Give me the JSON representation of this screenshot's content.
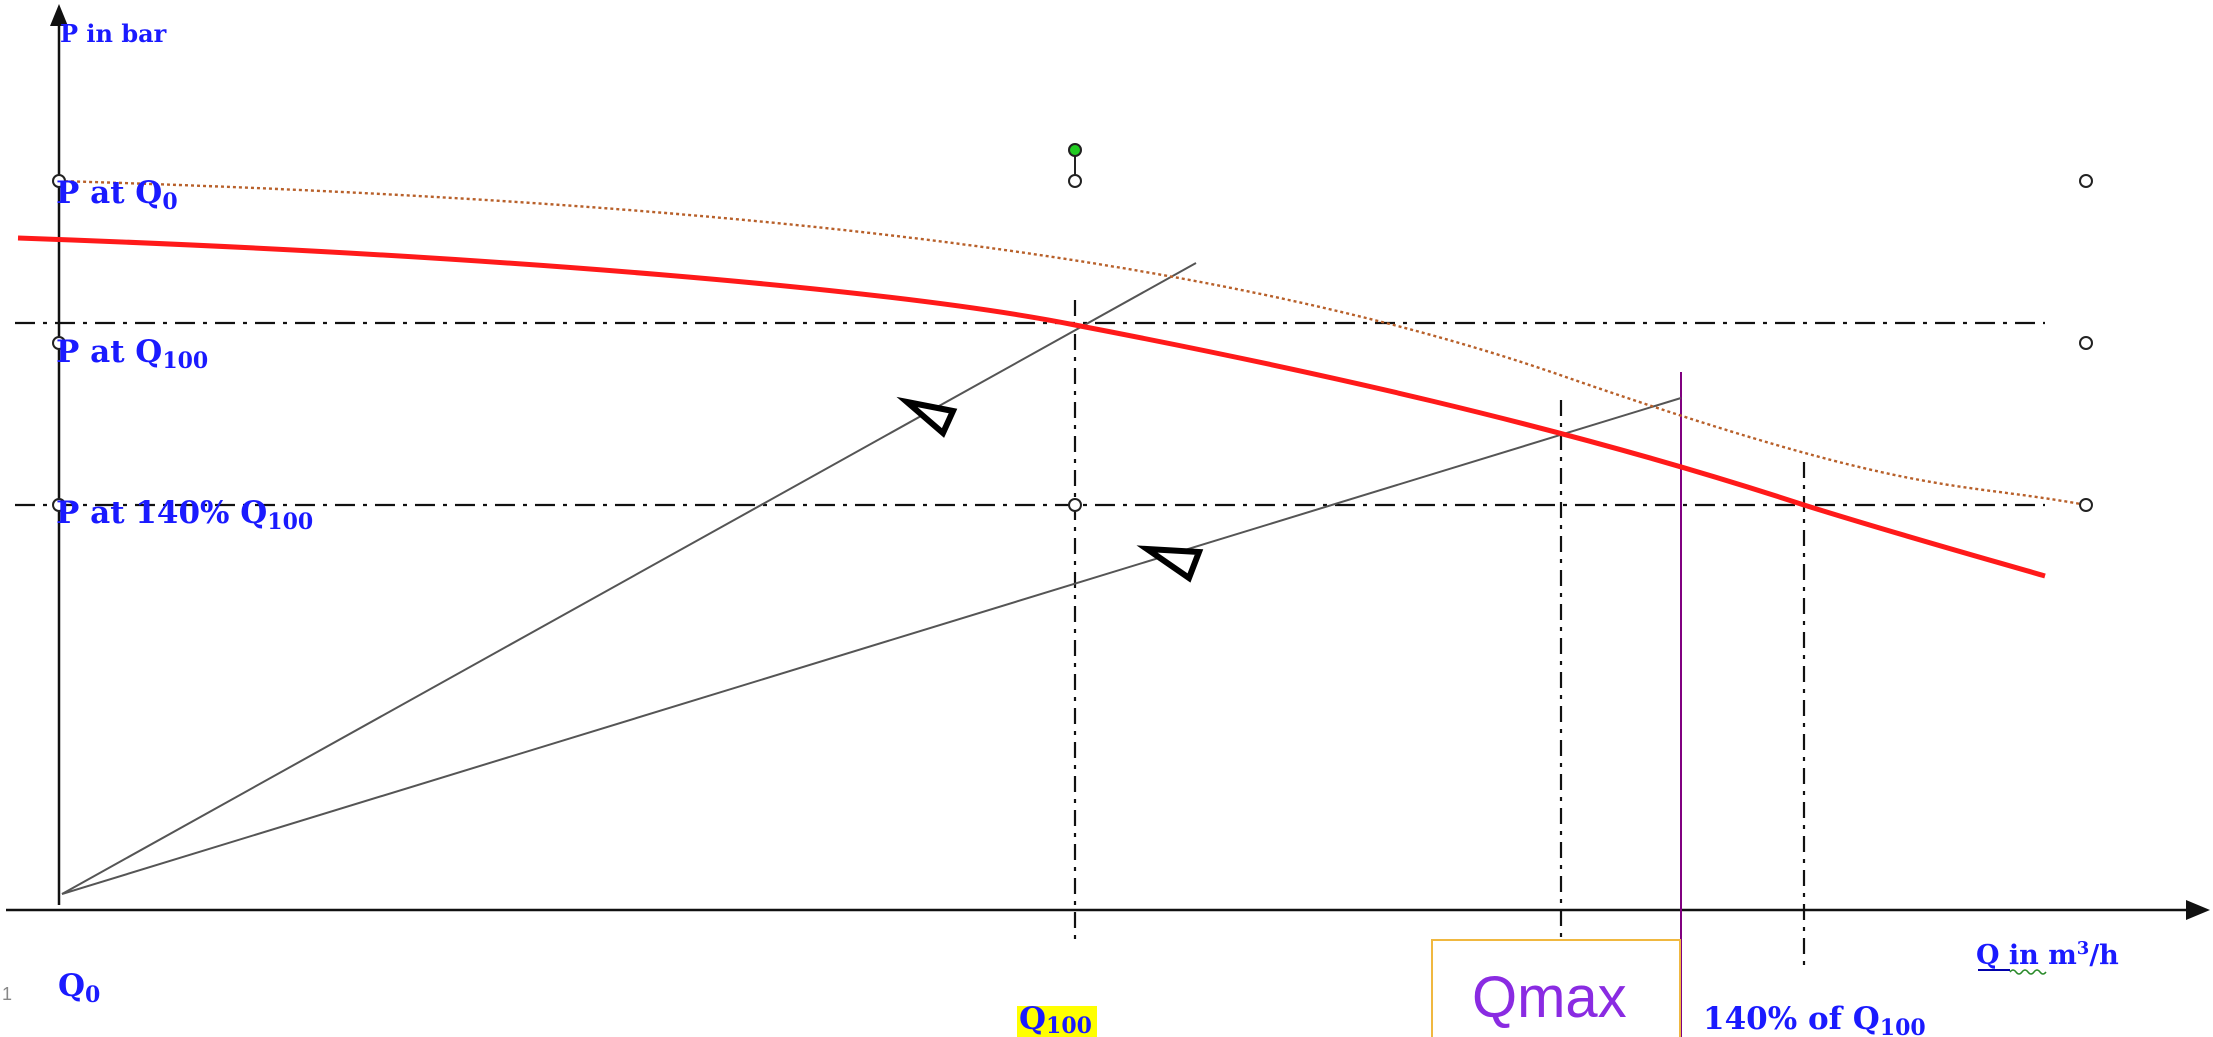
{
  "axes": {
    "y_label": "P in bar",
    "x_label_main": "Q  in m",
    "x_label_sup": "3",
    "x_label_tail": "/h"
  },
  "y_labels": {
    "p_q0_main": "P at Q",
    "p_q0_sub": "0",
    "p_q100_main": "P at Q",
    "p_q100_sub": "100",
    "p_140_main": "P at 140% Q",
    "p_140_sub": "100"
  },
  "x_labels": {
    "q0_main": "Q",
    "q0_sub": "0",
    "q100_main": "Q",
    "q100_sub": "100",
    "q140_main": "140% of Q",
    "q140_sub": "100",
    "qmax": "Qmax"
  },
  "corner_mark": "1",
  "colors": {
    "pump_curve": "#ff1a1a",
    "dotted_curve": "#b8602a",
    "system_lines": "#555555",
    "qmax_line": "#800080",
    "qmax_box_border": "#f0b840",
    "q100_highlight": "#ffff00",
    "label_text": "#1a1aff",
    "green_handle": "#22cc22"
  }
}
